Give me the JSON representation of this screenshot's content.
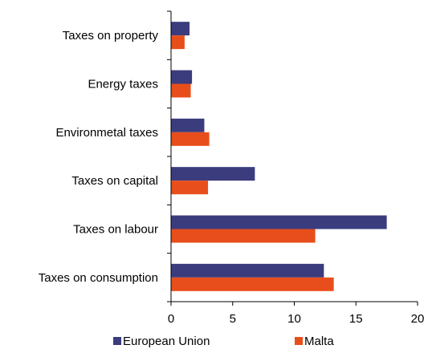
{
  "chart_data": {
    "type": "bar",
    "orientation": "horizontal",
    "categories": [
      "Taxes on property",
      "Energy taxes",
      "Environmetal taxes",
      "Taxes on capital",
      "Taxes on labour",
      "Taxes on consumption"
    ],
    "series": [
      {
        "name": "European Union",
        "color": "#3b3c7e",
        "values": [
          1.5,
          1.7,
          2.7,
          6.8,
          17.5,
          12.4
        ]
      },
      {
        "name": "Malta",
        "color": "#e84e1b",
        "values": [
          1.1,
          1.6,
          3.1,
          3.0,
          11.7,
          13.2
        ]
      }
    ],
    "xlim": [
      0,
      20
    ],
    "xticks": [
      "0",
      "5",
      "10",
      "15",
      "20"
    ],
    "grid": false,
    "legend_position": "bottom",
    "title": "",
    "xlabel": "",
    "ylabel": ""
  }
}
